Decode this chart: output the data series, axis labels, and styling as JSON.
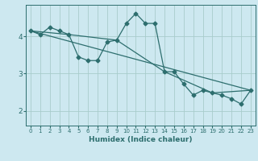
{
  "xlabel": "Humidex (Indice chaleur)",
  "ylabel": "",
  "background_color": "#cde8f0",
  "line_color": "#2d6e6e",
  "grid_color": "#a8cccc",
  "xlim": [
    -0.5,
    23.5
  ],
  "ylim": [
    1.6,
    4.85
  ],
  "yticks": [
    2,
    3,
    4
  ],
  "xticks": [
    0,
    1,
    2,
    3,
    4,
    5,
    6,
    7,
    8,
    9,
    10,
    11,
    12,
    13,
    14,
    15,
    16,
    17,
    18,
    19,
    20,
    21,
    22,
    23
  ],
  "series1_x": [
    0,
    1,
    2,
    3,
    4,
    5,
    6,
    7,
    8,
    9,
    10,
    11,
    12,
    13,
    14,
    15,
    16,
    17,
    18,
    19,
    20,
    21,
    22,
    23
  ],
  "series1_y": [
    4.15,
    4.05,
    4.25,
    4.15,
    4.05,
    3.45,
    3.35,
    3.35,
    3.85,
    3.9,
    4.35,
    4.62,
    4.35,
    4.35,
    3.05,
    3.05,
    2.72,
    2.42,
    2.55,
    2.48,
    2.42,
    2.32,
    2.18,
    2.55
  ],
  "series2_x": [
    0,
    23
  ],
  "series2_y": [
    4.15,
    2.55
  ],
  "series3_x": [
    0,
    4,
    9,
    14,
    19,
    23
  ],
  "series3_y": [
    4.15,
    4.05,
    3.9,
    3.05,
    2.48,
    2.55
  ]
}
